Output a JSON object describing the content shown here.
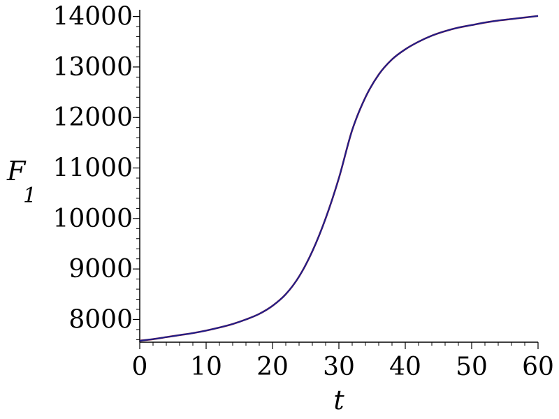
{
  "chart_data": {
    "type": "line",
    "title": "",
    "xlabel": "t",
    "ylabel": "F",
    "ylabel_subscript": "1",
    "xlim": [
      0,
      60
    ],
    "ylim": [
      7550,
      14050
    ],
    "x_ticks": [
      0,
      10,
      20,
      30,
      40,
      50,
      60
    ],
    "y_ticks": [
      8000,
      9000,
      10000,
      11000,
      12000,
      13000,
      14000
    ],
    "x_minor_step": 2,
    "y_minor_step": 200,
    "grid": false,
    "legend": "none",
    "colors": {
      "line": "#1f1f8a",
      "line_overlay": "#8a1f3a",
      "axis": "#000000"
    },
    "series": [
      {
        "x": [
          0,
          2,
          4,
          6,
          8,
          10,
          12,
          14,
          16,
          18,
          20,
          22,
          24,
          26,
          28,
          30,
          32,
          34,
          36,
          38,
          40,
          42,
          44,
          46,
          48,
          50,
          52,
          54,
          56,
          58,
          60
        ],
        "values": [
          7580,
          7610,
          7650,
          7690,
          7730,
          7780,
          7840,
          7910,
          8000,
          8110,
          8270,
          8500,
          8850,
          9350,
          10000,
          10800,
          11750,
          12400,
          12850,
          13150,
          13350,
          13500,
          13620,
          13710,
          13780,
          13830,
          13880,
          13920,
          13950,
          13980,
          14010
        ]
      }
    ]
  }
}
